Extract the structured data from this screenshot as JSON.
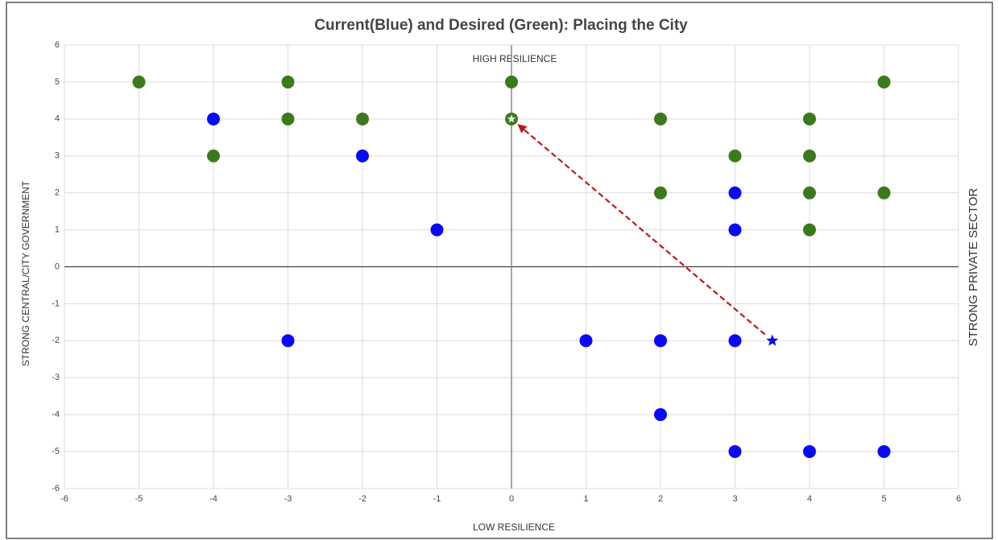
{
  "chart_data": {
    "type": "scatter",
    "title": "Current(Blue) and Desired (Green): Placing the City",
    "top_label": "HIGH RESILIENCE",
    "x_label": "LOW RESILIENCE",
    "y_label": "STRONG CENTRAL/CITY GOVERNMENT",
    "y2_label": "STRONG PRIVATE SECTOR",
    "xlim": [
      -6,
      6
    ],
    "ylim": [
      -6,
      6
    ],
    "xticks": [
      -6,
      -5,
      -4,
      -3,
      -2,
      -1,
      0,
      1,
      2,
      3,
      4,
      5,
      6
    ],
    "yticks": [
      -6,
      -5,
      -4,
      -3,
      -2,
      -1,
      0,
      1,
      2,
      3,
      4,
      5,
      6
    ],
    "grid": true,
    "series": [
      {
        "color": "#3a7a1c",
        "marker": "circle",
        "x": [
          -5,
          -3,
          0,
          5,
          -3,
          -2,
          2,
          4,
          -4,
          3,
          4,
          2,
          4,
          5,
          4
        ],
        "y": [
          5,
          5,
          5,
          5,
          4,
          4,
          4,
          4,
          3,
          3,
          3,
          2,
          2,
          2,
          1
        ]
      },
      {
        "color": "#3a7a1c",
        "marker": "star-in-circle",
        "x": [
          0
        ],
        "y": [
          4
        ]
      },
      {
        "color": "#0a0af5",
        "marker": "circle",
        "x": [
          -4,
          -2,
          -1,
          3,
          3,
          -3,
          1,
          2,
          3,
          2,
          3,
          4,
          5
        ],
        "y": [
          4,
          3,
          1,
          2,
          1,
          -2,
          -2,
          -2,
          -2,
          -4,
          -5,
          -5,
          -5
        ]
      },
      {
        "color": "#0a0af5",
        "marker": "star",
        "x": [
          3.5
        ],
        "y": [
          -2
        ]
      }
    ],
    "arrow": {
      "color": "#c0161b",
      "x": [
        3.5,
        0
      ],
      "y": [
        -2,
        4
      ]
    }
  }
}
